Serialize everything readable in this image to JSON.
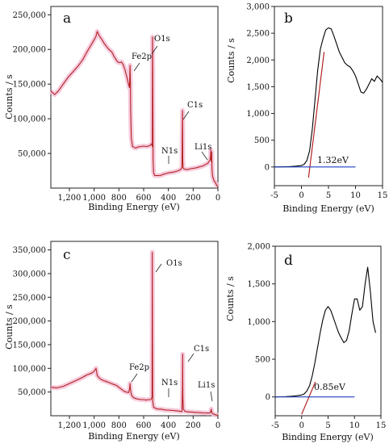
{
  "chart_data": [
    {
      "type": "line",
      "panel_label": "a",
      "xlabel": "Binding Energy (eV)",
      "ylabel": "Counts / s",
      "x_reversed": true,
      "xlim": [
        1350,
        0
      ],
      "ylim": [
        0,
        262000
      ],
      "x_ticks": [
        1200,
        1000,
        800,
        600,
        400,
        200,
        0
      ],
      "x_tick_labels": [
        "1,200",
        "1,000",
        "800",
        "600",
        "400",
        "200",
        "0"
      ],
      "y_ticks": [
        50000,
        100000,
        150000,
        200000,
        250000
      ],
      "y_tick_labels": [
        "50,000",
        "100,000",
        "150,000",
        "200,000",
        "250,000"
      ],
      "series": [
        {
          "color": "#b22222",
          "fill_color": "#f4c2d8",
          "x": [
            1350,
            1320,
            1290,
            1250,
            1210,
            1170,
            1130,
            1090,
            1060,
            1030,
            1000,
            985,
            975,
            960,
            940,
            920,
            895,
            875,
            860,
            850,
            840,
            825,
            810,
            795,
            780,
            765,
            750,
            735,
            725,
            715,
            712,
            710,
            707,
            705,
            700,
            690,
            680,
            670,
            660,
            650,
            640,
            620,
            600,
            580,
            560,
            545,
            535,
            530,
            528,
            526,
            524,
            520,
            510,
            500,
            480,
            460,
            440,
            420,
            400,
            380,
            360,
            340,
            320,
            300,
            290,
            286,
            285,
            284,
            282,
            278,
            270,
            260,
            240,
            220,
            200,
            180,
            160,
            140,
            120,
            100,
            80,
            65,
            60,
            57,
            55,
            52,
            50,
            48,
            45,
            40,
            30,
            20,
            10,
            0
          ],
          "y": [
            140000,
            135000,
            140000,
            150000,
            160000,
            168000,
            176000,
            186000,
            196000,
            205000,
            214000,
            219000,
            226000,
            220000,
            215000,
            209000,
            203000,
            199000,
            197000,
            194000,
            190000,
            186000,
            182000,
            181000,
            182000,
            178000,
            170000,
            160000,
            152000,
            145000,
            160000,
            177000,
            152000,
            110000,
            72000,
            60000,
            59000,
            58000,
            58000,
            59000,
            59500,
            60000,
            60500,
            60000,
            60500,
            62000,
            64000,
            60000,
            218000,
            168000,
            40000,
            22000,
            18000,
            18000,
            18000,
            18500,
            20000,
            21000,
            22000,
            22500,
            23000,
            24000,
            25000,
            27000,
            30000,
            112000,
            90000,
            40000,
            30000,
            28000,
            27500,
            27000,
            27000,
            28000,
            28500,
            29000,
            30000,
            31000,
            32000,
            34000,
            36000,
            40000,
            45000,
            55000,
            40000,
            38000,
            52000,
            30000,
            20000,
            15000,
            10000,
            8000,
            4000,
            2000
          ]
        }
      ],
      "annotations": [
        "Fe2p",
        "O1s",
        "C1s",
        "N1s",
        "Li1s"
      ]
    },
    {
      "type": "line",
      "panel_label": "b",
      "xlim": [
        -5,
        15
      ],
      "ylim": [
        -350,
        3000
      ],
      "x_ticks": [
        -5,
        0,
        5,
        10,
        15
      ],
      "x_tick_labels": [
        "-5",
        "0",
        "5",
        "10",
        "15"
      ],
      "y_ticks": [
        0,
        500,
        1000,
        1500,
        2000,
        2500,
        3000
      ],
      "y_tick_labels": [
        "0",
        "500",
        "1,000",
        "1,500",
        "2,000",
        "2,500",
        "3,000"
      ],
      "series": [
        {
          "color": "#000000",
          "x": [
            -5,
            -4,
            -3,
            -2,
            -1,
            0,
            0.5,
            1,
            1.5,
            2,
            2.5,
            3,
            3.5,
            4,
            4.5,
            5,
            5.5,
            6,
            6.5,
            7,
            7.5,
            8,
            8.5,
            9,
            9.5,
            10,
            10.5,
            11,
            11.5,
            12,
            12.5,
            13,
            13.5,
            14,
            14.5,
            15
          ],
          "y": [
            0,
            2,
            5,
            8,
            15,
            25,
            50,
            120,
            300,
            700,
            1250,
            1800,
            2200,
            2400,
            2560,
            2600,
            2580,
            2450,
            2300,
            2150,
            2050,
            1950,
            1900,
            1870,
            1800,
            1700,
            1550,
            1400,
            1380,
            1450,
            1550,
            1650,
            1600,
            1700,
            1650,
            1580
          ]
        }
      ],
      "fit_lines": [
        {
          "color": "#b22222",
          "x": [
            1.32,
            4.2
          ],
          "y": [
            -200,
            2150
          ]
        },
        {
          "color": "#1f3fbf",
          "x": [
            -5,
            10
          ],
          "y": [
            0,
            0
          ]
        }
      ],
      "annotations": [
        "1.32eV"
      ]
    },
    {
      "type": "line",
      "panel_label": "c",
      "xlabel": "Binding Energy (eV)",
      "ylabel": "Counts / s",
      "x_reversed": true,
      "xlim": [
        1350,
        0
      ],
      "ylim": [
        0,
        368000
      ],
      "x_ticks": [
        1200,
        1000,
        800,
        600,
        400,
        200,
        0
      ],
      "x_tick_labels": [
        "1,200",
        "1,000",
        "800",
        "600",
        "400",
        "200",
        "0"
      ],
      "y_ticks": [
        50000,
        100000,
        150000,
        200000,
        250000,
        300000,
        350000
      ],
      "y_tick_labels": [
        "50,000",
        "100,000",
        "150,000",
        "200,000",
        "250,000",
        "300,000",
        "350,000"
      ],
      "series": [
        {
          "color": "#b22222",
          "fill_color": "#f4c2d8",
          "x": [
            1350,
            1300,
            1250,
            1200,
            1150,
            1100,
            1060,
            1020,
            1000,
            985,
            975,
            960,
            940,
            920,
            900,
            880,
            860,
            840,
            820,
            800,
            780,
            760,
            740,
            720,
            712,
            710,
            706,
            700,
            690,
            680,
            660,
            640,
            620,
            600,
            580,
            560,
            540,
            532,
            530,
            528,
            526,
            520,
            500,
            480,
            460,
            440,
            420,
            400,
            380,
            360,
            340,
            320,
            300,
            290,
            286,
            285,
            283,
            280,
            270,
            260,
            240,
            220,
            200,
            180,
            160,
            140,
            120,
            100,
            80,
            65,
            60,
            58,
            56,
            54,
            50,
            45,
            40,
            30,
            20,
            10,
            0
          ],
          "y": [
            60000,
            59000,
            62000,
            68000,
            74000,
            80000,
            86000,
            90000,
            94000,
            100000,
            85000,
            80000,
            76000,
            74000,
            72000,
            70000,
            68000,
            66000,
            64000,
            60000,
            56000,
            52000,
            50000,
            49000,
            60000,
            68000,
            55000,
            45000,
            40000,
            38000,
            36000,
            35000,
            34000,
            34000,
            33000,
            34000,
            34000,
            40000,
            345000,
            150000,
            30000,
            18000,
            15000,
            14000,
            14000,
            13000,
            12000,
            12000,
            11500,
            11000,
            10500,
            10000,
            9000,
            9000,
            60000,
            130000,
            40000,
            15000,
            10000,
            9000,
            8000,
            8000,
            7500,
            7000,
            7000,
            6500,
            6000,
            6000,
            5500,
            6000,
            7000,
            10000,
            8000,
            14000,
            8000,
            5000,
            4000,
            3000,
            2000,
            1500,
            1000
          ]
        }
      ],
      "annotations": [
        "O1s",
        "Fe2p",
        "N1s",
        "C1s",
        "Li1s"
      ]
    },
    {
      "type": "line",
      "panel_label": "d",
      "xlim": [
        -5,
        15
      ],
      "ylim": [
        -250,
        2000
      ],
      "x_ticks": [
        -5,
        0,
        5,
        10,
        15
      ],
      "x_tick_labels": [
        "-5",
        "0",
        "5",
        "10",
        "15"
      ],
      "y_ticks": [
        0,
        500,
        1000,
        1500,
        2000
      ],
      "y_tick_labels": [
        "0",
        "500",
        "1,000",
        "1,500",
        "2,000"
      ],
      "series": [
        {
          "color": "#000000",
          "x": [
            -5,
            -4,
            -3,
            -2,
            -1,
            0,
            0.5,
            1,
            1.5,
            2,
            2.5,
            3,
            3.5,
            4,
            4.5,
            5,
            5.5,
            6,
            6.5,
            7,
            7.5,
            8,
            8.5,
            9,
            9.5,
            10,
            10.5,
            11,
            11.5,
            12,
            12.5,
            13,
            13.5,
            14
          ],
          "y": [
            0,
            2,
            4,
            8,
            15,
            25,
            40,
            80,
            150,
            280,
            450,
            650,
            850,
            1020,
            1150,
            1200,
            1150,
            1050,
            950,
            850,
            780,
            720,
            750,
            880,
            1100,
            1300,
            1300,
            1150,
            1200,
            1500,
            1720,
            1400,
            1000,
            850
          ]
        }
      ],
      "fit_lines": [
        {
          "color": "#b22222",
          "x": [
            0.0,
            2.6
          ],
          "y": [
            -230,
            200
          ]
        },
        {
          "color": "#1f3fbf",
          "x": [
            -5,
            10
          ],
          "y": [
            0,
            0
          ]
        }
      ],
      "annotations": [
        "0.85eV"
      ]
    }
  ]
}
